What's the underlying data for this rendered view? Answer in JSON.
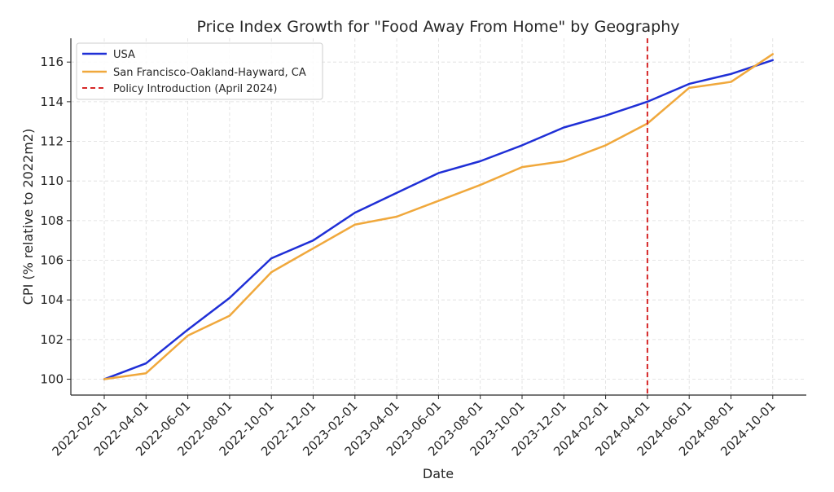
{
  "chart_data": {
    "type": "line",
    "title": "Price Index Growth for \"Food Away From Home\" by Geography",
    "xlabel": "Date",
    "ylabel": "CPI (% relative to 2022m2)",
    "x": [
      "2022-02-01",
      "2022-04-01",
      "2022-06-01",
      "2022-08-01",
      "2022-10-01",
      "2022-12-01",
      "2023-02-01",
      "2023-04-01",
      "2023-06-01",
      "2023-08-01",
      "2023-10-01",
      "2023-12-01",
      "2024-02-01",
      "2024-04-01",
      "2024-06-01",
      "2024-08-01",
      "2024-10-01"
    ],
    "ylim": [
      99.2,
      117.2
    ],
    "yticks": [
      100,
      102,
      104,
      106,
      108,
      110,
      112,
      114,
      116
    ],
    "grid": true,
    "legend_position": "top-left",
    "series": [
      {
        "name": "USA",
        "color": "#1f2fd6",
        "style": "solid",
        "values": [
          100.0,
          100.8,
          102.5,
          104.1,
          106.1,
          107.0,
          108.4,
          109.4,
          110.4,
          111.0,
          111.8,
          112.7,
          113.3,
          114.0,
          114.9,
          115.4,
          116.1
        ]
      },
      {
        "name": "San Francisco-Oakland-Hayward, CA",
        "color": "#f0a83c",
        "style": "solid",
        "values": [
          100.0,
          100.3,
          102.2,
          103.2,
          105.4,
          106.6,
          107.8,
          108.2,
          109.0,
          109.8,
          110.7,
          111.0,
          111.8,
          112.9,
          114.7,
          115.0,
          116.4
        ]
      }
    ],
    "vline": {
      "name": "Policy Introduction (April 2024)",
      "x": "2024-04-01",
      "color": "#d62728",
      "style": "dashed"
    }
  }
}
